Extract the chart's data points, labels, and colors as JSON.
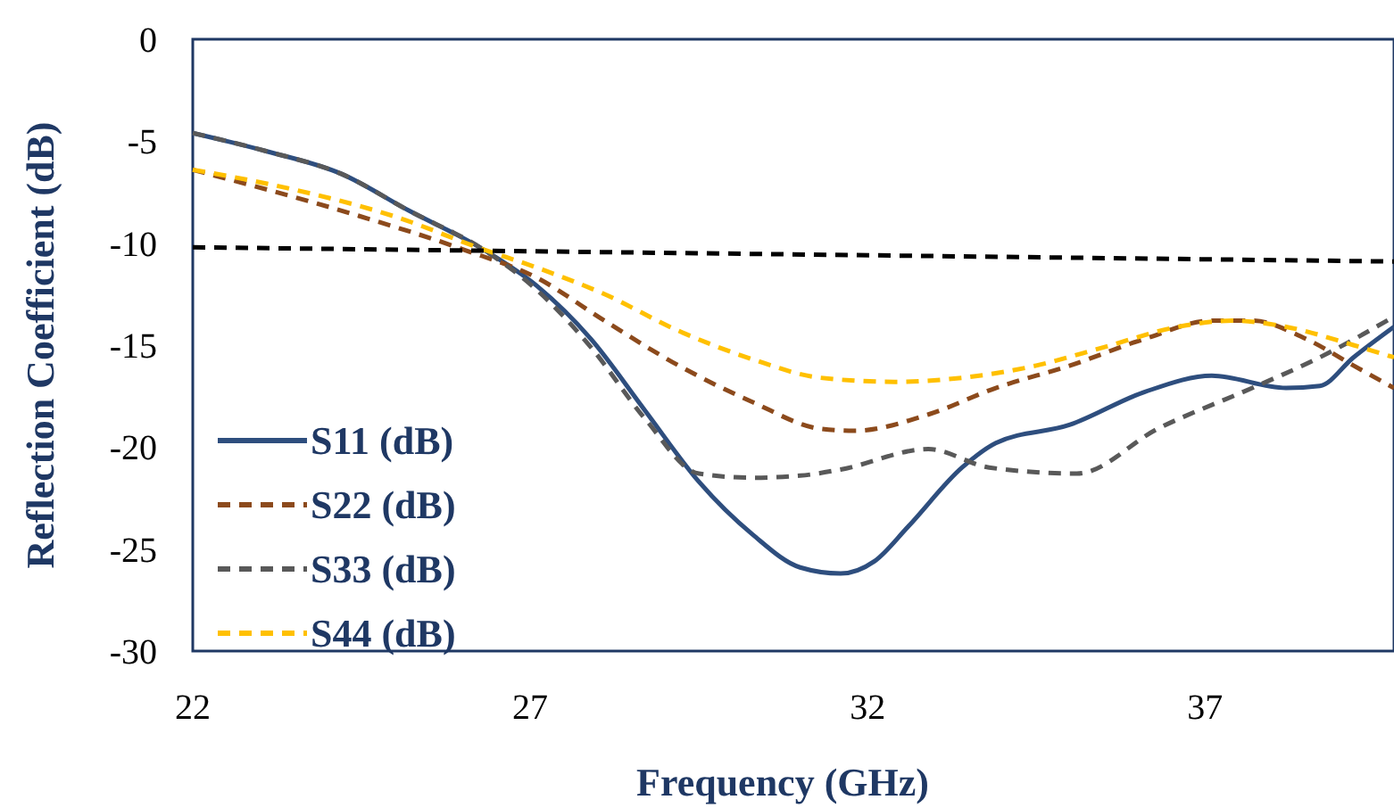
{
  "chart_data": {
    "type": "line",
    "xlabel": "Frequency (GHz)",
    "ylabel": "Reflection Coefficient (dB)",
    "xlim": [
      22,
      39.8
    ],
    "xticks": [
      22,
      27,
      32,
      37
    ],
    "ylim": [
      -30,
      0
    ],
    "yticks": [
      -30,
      -25,
      -20,
      -15,
      -10,
      -5,
      0
    ],
    "grid": false,
    "legend": "bottom left",
    "marker": "none",
    "series": [
      {
        "name": "S11 (dB)",
        "color": "#2e4e7e",
        "line_style": "solid",
        "x": [
          22.0,
          23.1,
          24.2,
          25.2,
          26.3,
          27.1,
          27.9,
          28.7,
          29.5,
          30.3,
          31.0,
          31.6,
          32.1,
          32.6,
          33.4,
          33.9,
          35.0,
          36.1,
          37.1,
          38.2,
          38.7,
          39.2,
          39.8
        ],
        "values": [
          -4.6,
          -5.5,
          -6.6,
          -8.4,
          -10.3,
          -12.1,
          -14.7,
          -18.2,
          -21.7,
          -24.3,
          -25.9,
          -26.2,
          -25.6,
          -23.9,
          -21.0,
          -19.8,
          -18.9,
          -17.3,
          -16.5,
          -17.1,
          -17.0,
          -15.6,
          -14.1
        ]
      },
      {
        "name": "S22 (dB)",
        "color": "#8c4a1c",
        "line_style": "dashed",
        "x": [
          22.0,
          24.4,
          26.0,
          27.1,
          28.1,
          29.2,
          30.3,
          31.3,
          31.8,
          32.9,
          33.9,
          35.0,
          36.1,
          37.1,
          37.7,
          38.5,
          39.2,
          39.8
        ],
        "values": [
          -6.4,
          -8.6,
          -10.3,
          -11.7,
          -13.8,
          -16.0,
          -17.8,
          -19.1,
          -19.2,
          -18.4,
          -17.1,
          -16.0,
          -14.7,
          -13.8,
          -13.8,
          -14.7,
          -16.0,
          -17.1
        ]
      },
      {
        "name": "S33 (dB)",
        "color": "#595959",
        "line_style": "dashed",
        "x": [
          22.0,
          23.1,
          24.2,
          25.2,
          26.3,
          27.1,
          27.9,
          28.7,
          29.5,
          30.3,
          31.0,
          31.6,
          32.9,
          33.8,
          35.1,
          36.3,
          37.7,
          38.7,
          39.8
        ],
        "values": [
          -4.6,
          -5.5,
          -6.6,
          -8.4,
          -10.3,
          -12.3,
          -15.1,
          -18.6,
          -21.3,
          -21.5,
          -21.4,
          -21.1,
          -20.1,
          -21.0,
          -21.3,
          -19.1,
          -17.1,
          -15.6,
          -13.6
        ]
      },
      {
        "name": "S44 (dB)",
        "color": "#ffc000",
        "line_style": "dashed",
        "x": [
          22.0,
          23.4,
          25.0,
          26.3,
          27.1,
          28.1,
          29.2,
          30.3,
          31.3,
          32.4,
          33.4,
          34.5,
          35.5,
          36.6,
          37.4,
          38.2,
          39.2,
          39.8
        ],
        "values": [
          -6.4,
          -7.3,
          -8.7,
          -10.3,
          -11.2,
          -12.5,
          -14.3,
          -15.7,
          -16.6,
          -16.8,
          -16.6,
          -16.0,
          -15.1,
          -14.1,
          -13.8,
          -14.1,
          -15.0,
          -15.6
        ]
      },
      {
        "color": "#000000",
        "line_style": "dashed",
        "x": [
          22.0,
          39.8
        ],
        "values": [
          -10.2,
          -10.9
        ]
      }
    ]
  }
}
